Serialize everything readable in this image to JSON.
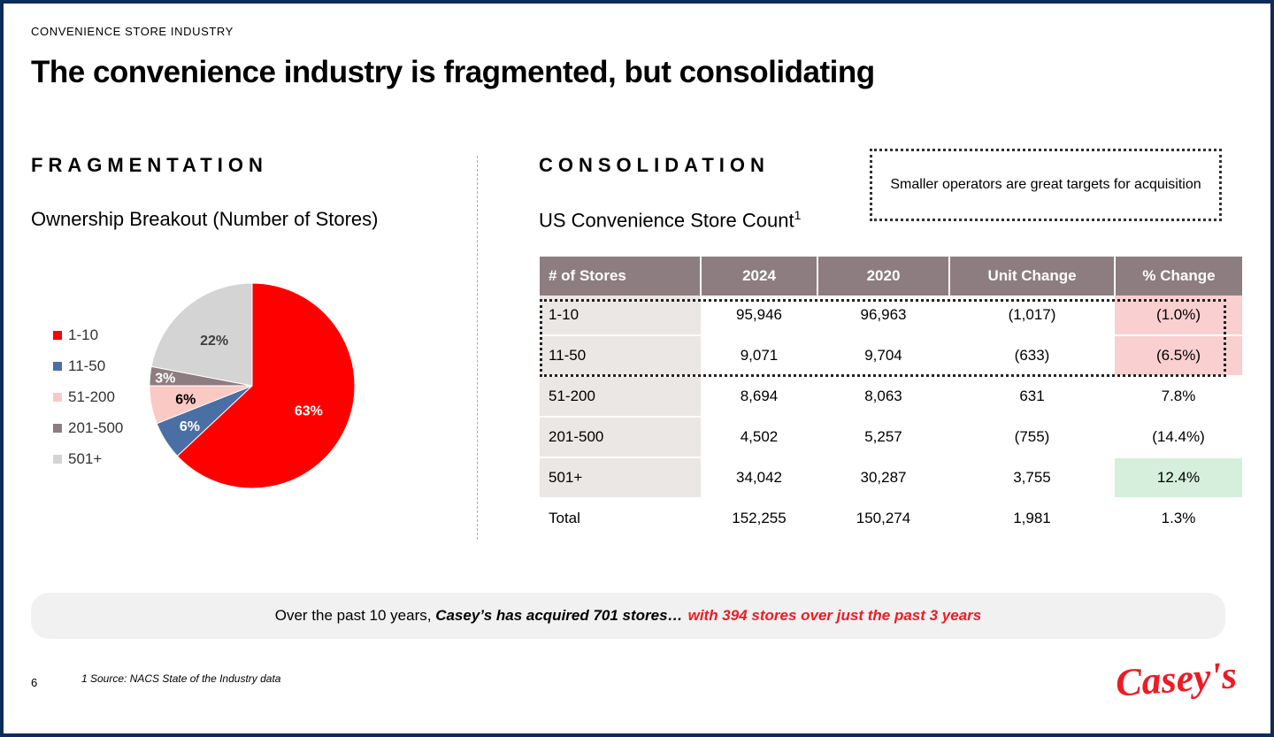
{
  "header": {
    "kicker": "CONVENIENCE STORE INDUSTRY",
    "title": "The convenience industry is fragmented, but consolidating"
  },
  "fragmentation": {
    "heading": "FRAGMENTATION",
    "subtitle": "Ownership Breakout (Number of Stores)"
  },
  "consolidation": {
    "heading": "CONSOLIDATION",
    "subtitle": "US Convenience Store Count",
    "subtitle_sup": "1",
    "callout": "Smaller operators are great targets for acquisition"
  },
  "chart_data": [
    {
      "type": "pie",
      "title": "Ownership Breakout (Number of Stores)",
      "legend_position": "left",
      "slices": [
        {
          "label": "1-10",
          "value": 63,
          "display": "63%",
          "color": "#ff0000"
        },
        {
          "label": "11-50",
          "value": 6,
          "display": "6%",
          "color": "#4a6fa5"
        },
        {
          "label": "51-200",
          "value": 6,
          "display": "6%",
          "color": "#fbc9c4"
        },
        {
          "label": "201-500",
          "value": 3,
          "display": "3%",
          "color": "#8d7d80"
        },
        {
          "label": "501+",
          "value": 22,
          "display": "22%",
          "color": "#d4d4d4"
        }
      ]
    },
    {
      "type": "table",
      "title": "US Convenience Store Count",
      "columns": [
        "# of Stores",
        "2024",
        "2020",
        "Unit Change",
        "% Change"
      ],
      "rows": [
        {
          "cells": [
            "1-10",
            "95,946",
            "96,963",
            "(1,017)",
            "(1.0%)"
          ],
          "highlight": "negative"
        },
        {
          "cells": [
            "11-50",
            "9,071",
            "9,704",
            "(633)",
            "(6.5%)"
          ],
          "highlight": "negative"
        },
        {
          "cells": [
            "51-200",
            "8,694",
            "8,063",
            "631",
            "7.8%"
          ],
          "highlight": ""
        },
        {
          "cells": [
            "201-500",
            "4,502",
            "5,257",
            "(755)",
            "(14.4%)"
          ],
          "highlight": ""
        },
        {
          "cells": [
            "501+",
            "34,042",
            "30,287",
            "3,755",
            "12.4%"
          ],
          "highlight": "positive"
        }
      ],
      "total": [
        "Total",
        "152,255",
        "150,274",
        "1,981",
        "1.3%"
      ]
    }
  ],
  "banner": {
    "prefix": "Over the past 10 years,",
    "bold": "Casey’s has acquired 701 stores…",
    "red": "with 394 stores over just the past 3 years"
  },
  "footer": {
    "page_number": "6",
    "footnote": "1 Source: NACS State of the Industry data",
    "logo_text": "Casey's"
  },
  "colors": {
    "border": "#0c2c5a",
    "brand_red": "#ee1b24",
    "table_header": "#8d7d80",
    "negative_fill": "#f9cfd0",
    "positive_fill": "#d5efdc"
  }
}
